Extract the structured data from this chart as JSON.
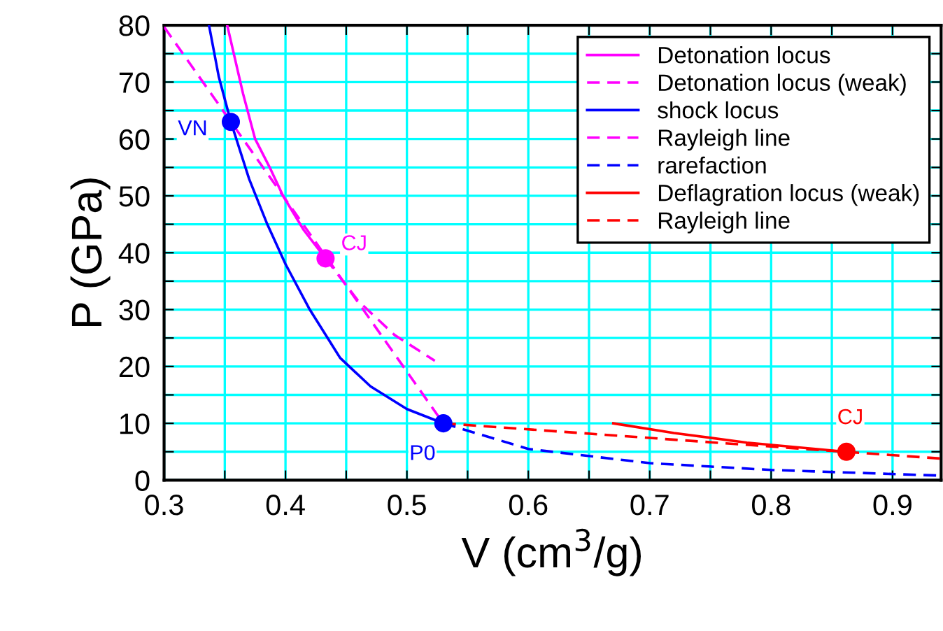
{
  "chart_data": {
    "type": "line",
    "xlabel": "V (cm$^{3}$/g)",
    "ylabel": "P (GPa)",
    "xlim": [
      0.3,
      0.94
    ],
    "ylim": [
      0,
      80
    ],
    "xticks": [
      0.3,
      {
        "value": 0.35,
        "label": null
      },
      0.4,
      {
        "value": 0.45,
        "label": null
      },
      0.5,
      {
        "value": 0.55,
        "label": null
      },
      0.6,
      {
        "value": 0.65,
        "label": null
      },
      0.7,
      {
        "value": 0.75,
        "label": null
      },
      0.8,
      {
        "value": 0.85,
        "label": null
      },
      0.9
    ],
    "yticks": [
      0,
      {
        "value": 5,
        "label": null
      },
      10,
      {
        "value": 15,
        "label": null
      },
      20,
      {
        "value": 25,
        "label": null
      },
      30,
      {
        "value": 35,
        "label": null
      },
      40,
      {
        "value": 45,
        "label": null
      },
      50,
      {
        "value": 55,
        "label": null
      },
      60,
      {
        "value": 65,
        "label": null
      },
      70,
      {
        "value": 75,
        "label": null
      },
      80
    ],
    "grid": true,
    "legend": "top right",
    "series": [
      {
        "name": "Detonation locus",
        "color": "#ff00ff",
        "line_style": "solid",
        "x": [
          0.352,
          0.365,
          0.375,
          0.387,
          0.398,
          0.415,
          0.433
        ],
        "values": [
          80,
          68,
          60,
          55,
          50,
          44,
          39
        ]
      },
      {
        "name": "Detonation locus (weak)",
        "color": "#ff00ff",
        "line_style": "dashed",
        "x": [
          0.433,
          0.46,
          0.49,
          0.523
        ],
        "values": [
          39,
          31.5,
          25.5,
          21
        ]
      },
      {
        "name": "shock locus",
        "color": "#0000ff",
        "line_style": "solid",
        "x": [
          0.337,
          0.345,
          0.355,
          0.37,
          0.385,
          0.4,
          0.42,
          0.445,
          0.47,
          0.5,
          0.53
        ],
        "values": [
          80,
          71,
          63,
          53,
          45,
          38,
          30,
          21.5,
          16.5,
          12.5,
          10
        ]
      },
      {
        "name": "Rayleigh line",
        "color": "#ff00ff",
        "line_style": "dashed",
        "x": [
          0.3,
          0.53
        ],
        "values": [
          79.7,
          10
        ]
      },
      {
        "name": "rarefaction",
        "color": "#0000ff",
        "line_style": "dashed",
        "x": [
          0.53,
          0.6,
          0.7,
          0.8,
          0.94
        ],
        "values": [
          10,
          5.5,
          3,
          1.8,
          0.8
        ]
      },
      {
        "name": "Deflagration locus (weak)",
        "color": "#ff0000",
        "line_style": "solid",
        "x": [
          0.67,
          0.72,
          0.78,
          0.862
        ],
        "values": [
          10,
          8.3,
          6.6,
          5
        ]
      },
      {
        "name": "Rayleigh line",
        "color": "#ff0000",
        "line_style": "dashed",
        "x": [
          0.53,
          0.94
        ],
        "values": [
          10,
          3.8
        ]
      },
      {
        "type": "scatter",
        "marker": "circle",
        "color": "#0000ff",
        "x": [
          0.355,
          0.53
        ],
        "values": [
          63,
          10
        ]
      },
      {
        "type": "scatter",
        "marker": "circle",
        "color": "#ff00ff",
        "x": [
          0.433
        ],
        "values": [
          39
        ]
      },
      {
        "type": "scatter",
        "marker": "circle",
        "color": "#ff0000",
        "x": [
          0.862
        ],
        "values": [
          5
        ]
      }
    ],
    "annotations": [
      {
        "text": "VN",
        "x": 0.355,
        "y": 63
      },
      {
        "text": "CJ",
        "x": 0.433,
        "y": 39
      },
      {
        "text": "P0",
        "x": 0.53,
        "y": 10
      },
      {
        "text": "CJ",
        "x": 0.862,
        "y": 5
      }
    ]
  }
}
